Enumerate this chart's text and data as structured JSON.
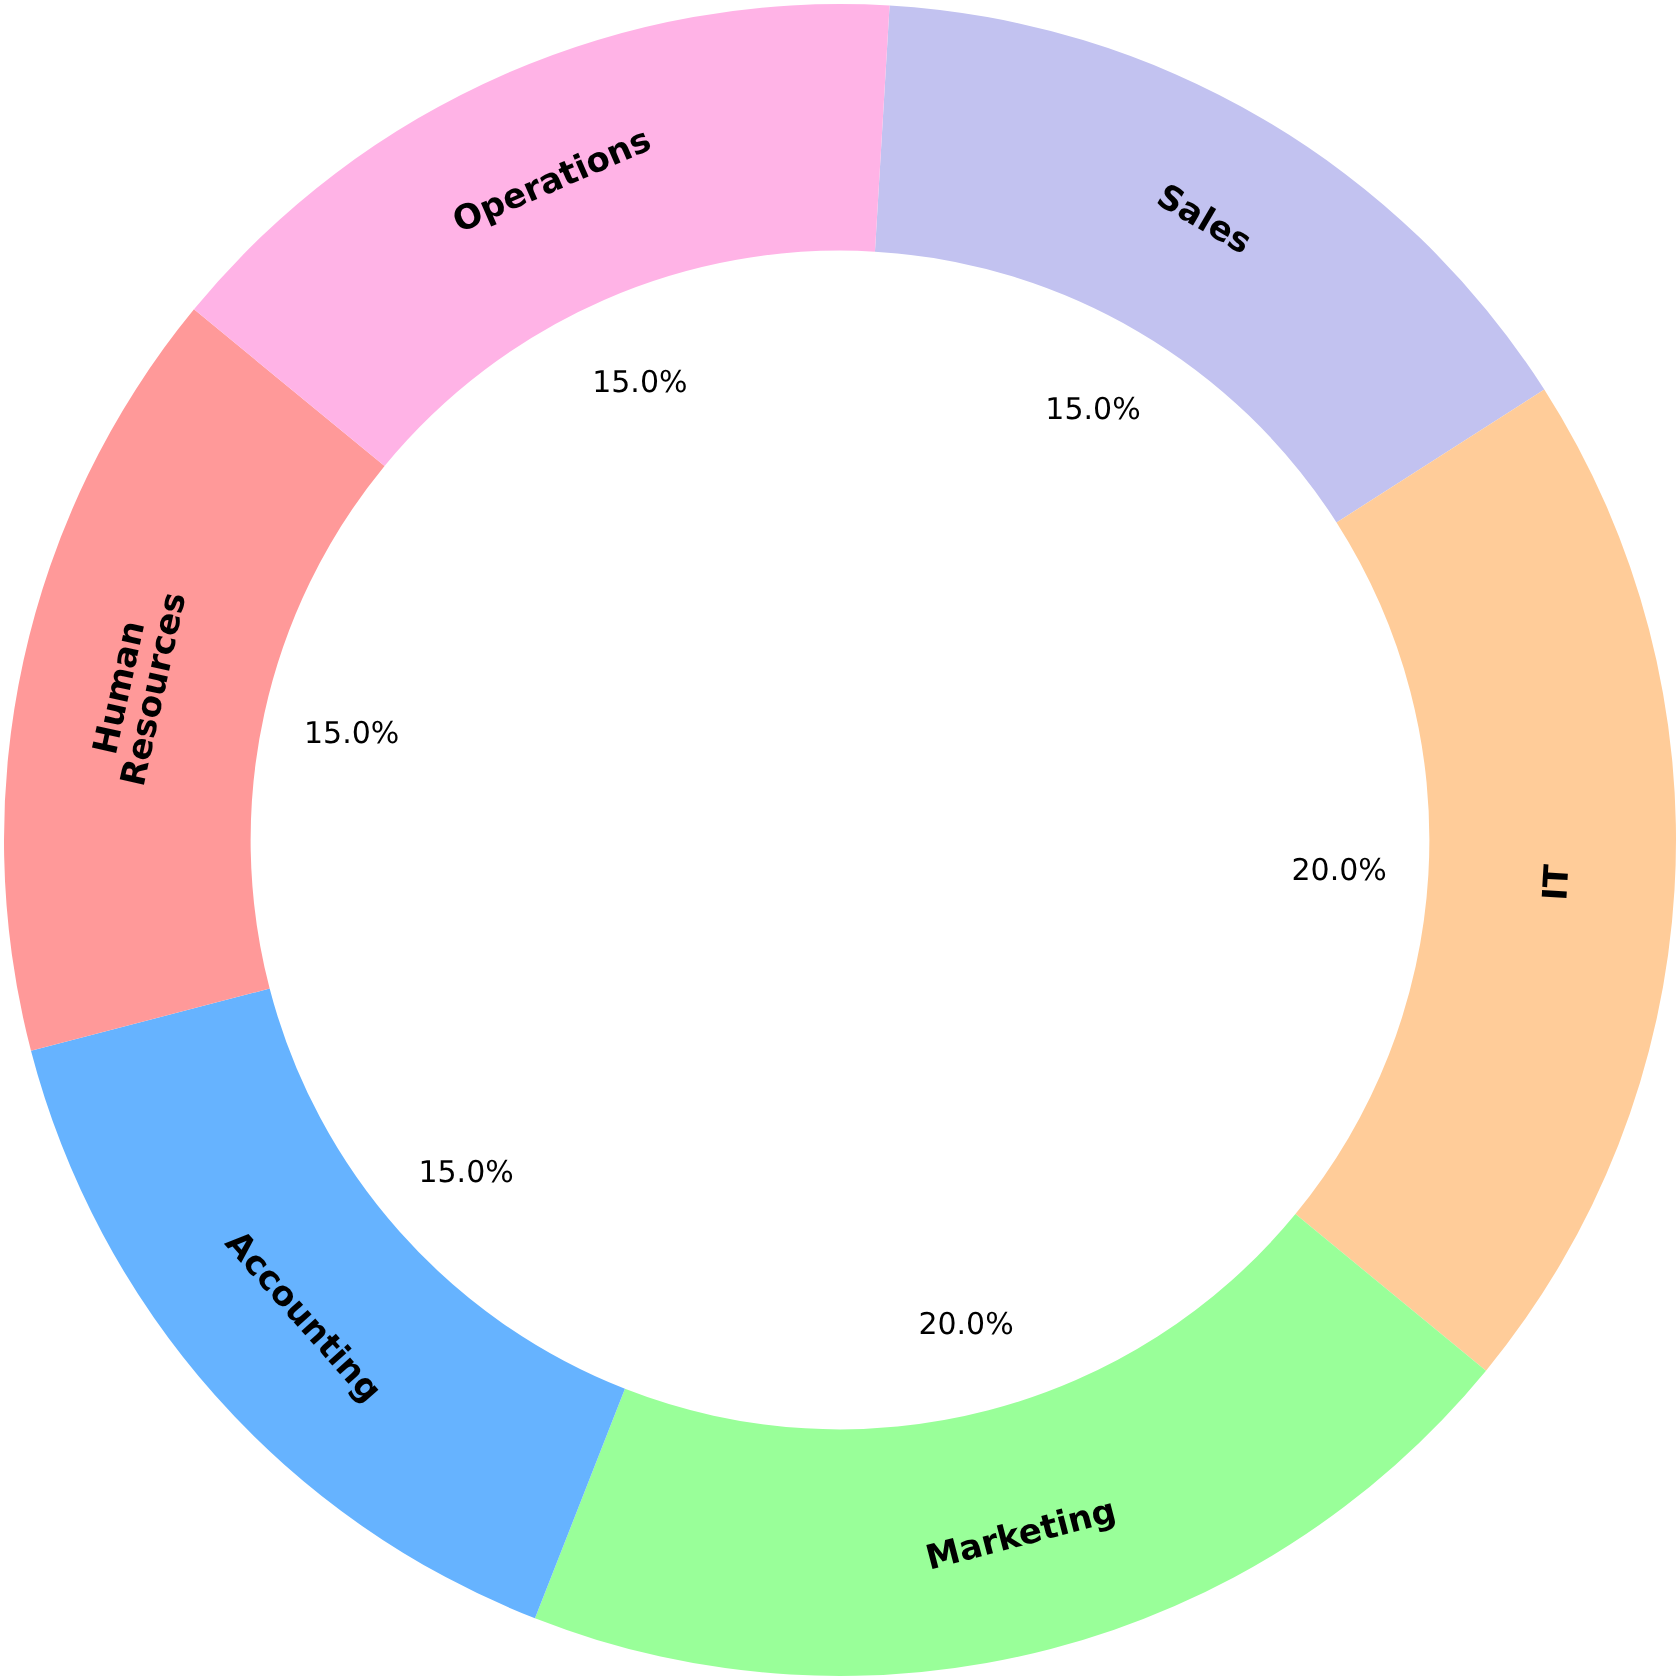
{
  "chart_data": {
    "type": "donut",
    "categories": [
      "Sales",
      "IT",
      "Marketing",
      "Accounting",
      "Human Resources",
      "Operations"
    ],
    "values": [
      15,
      20,
      20,
      15,
      15,
      15
    ],
    "value_labels": [
      "15.0%",
      "20.0%",
      "20.0%",
      "15.0%",
      "15.0%",
      "15.0%"
    ],
    "colors": [
      "#c2c2f0",
      "#ffcc99",
      "#99ff99",
      "#66b3ff",
      "#ff9999",
      "#ffb3e6"
    ],
    "legend": false
  }
}
